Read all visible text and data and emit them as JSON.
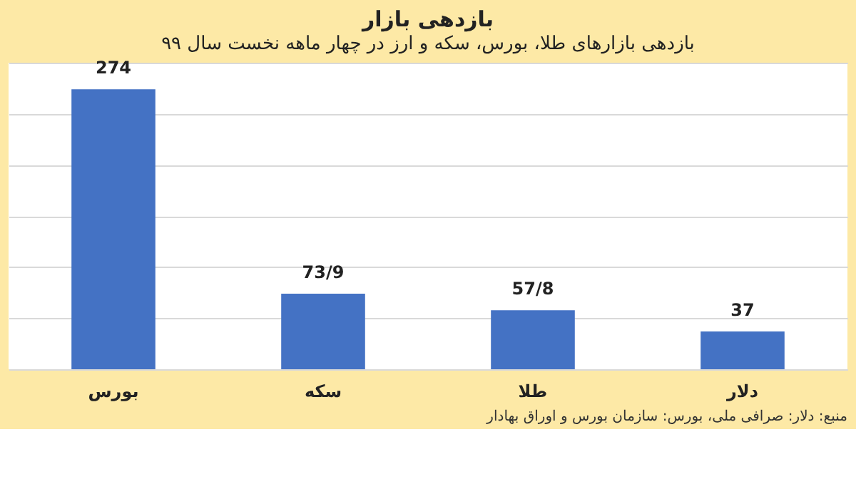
{
  "chart_data": {
    "type": "bar",
    "title": "بازدهی بازار",
    "subtitle": "بازدهی بازارهای طلا، بورس، سکه و ارز در چهار ماهه نخست سال ۹۹",
    "categories": [
      "بورس",
      "سکه",
      "طلا",
      "دلار"
    ],
    "values": [
      274,
      73.9,
      57.8,
      37
    ],
    "value_labels": [
      "274",
      "73/9",
      "57/8",
      "37"
    ],
    "color": "#4472c4",
    "ylim": [
      0,
      300
    ],
    "yticks": [
      {
        "value": 0,
        "label": null
      },
      {
        "value": 50,
        "label": null
      },
      {
        "value": 100,
        "label": null
      },
      {
        "value": 150,
        "label": null
      },
      {
        "value": 200,
        "label": null
      },
      {
        "value": 250,
        "label": null
      },
      {
        "value": 300,
        "label": null
      }
    ],
    "grid": "y",
    "tick_labels": "x",
    "annotations": [
      "منبع: دلار: صرافی ملی، بورس: سازمان بورس و اوراق بهادار"
    ]
  }
}
